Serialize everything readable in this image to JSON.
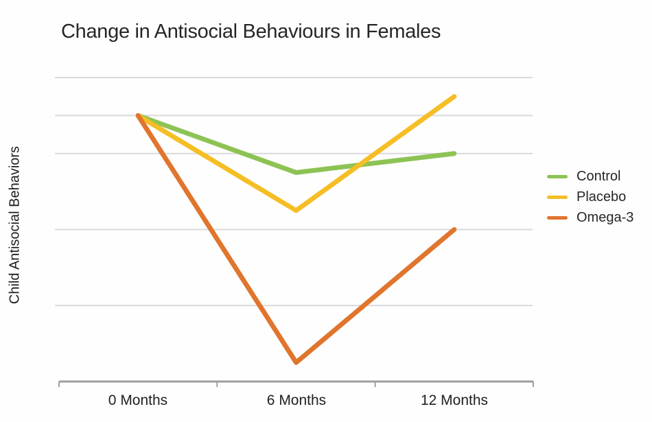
{
  "chart_data": {
    "type": "line",
    "title": "Change in Antisocial Behaviours in Females",
    "ylabel": "Child Antisocial Behaviors",
    "xlabel": "",
    "categories": [
      "0 Months",
      "6 Months",
      "12 Months"
    ],
    "series": [
      {
        "name": "Control",
        "color": "#8DC355",
        "values": [
          7,
          5.5,
          6
        ]
      },
      {
        "name": "Placebo",
        "color": "#F5BE25",
        "values": [
          7,
          4.5,
          7.5
        ]
      },
      {
        "name": "Omega-3",
        "color": "#E0752D",
        "values": [
          7,
          0.5,
          4
        ]
      }
    ],
    "ylim": [
      0,
      8.3
    ],
    "y_tick_labels_visible": false,
    "gridline_values": [
      8,
      7,
      6,
      4,
      2
    ],
    "legend_position": "right",
    "grid_on": true,
    "colors": {
      "grid": "#D9D9DD",
      "axis": "#9E9E9E",
      "text": "#262626",
      "background": "#FEFEFE"
    }
  }
}
